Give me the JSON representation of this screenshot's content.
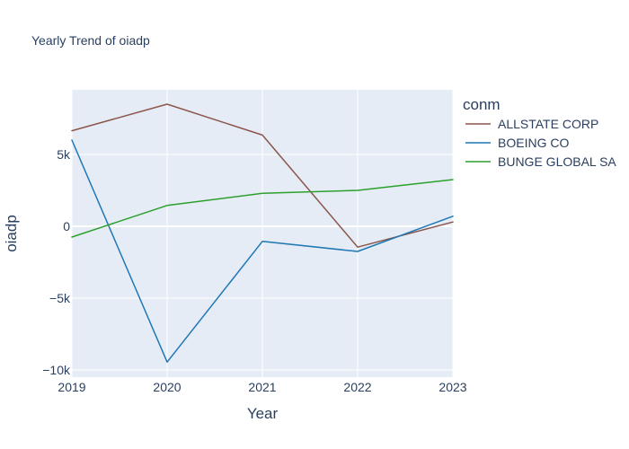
{
  "chart_data": {
    "type": "line",
    "title": "Yearly Trend of oiadp",
    "xlabel": "Year",
    "ylabel": "oiadp",
    "legend_title": "conm",
    "legend_position": "right",
    "grid": true,
    "x": [
      2019,
      2020,
      2021,
      2022,
      2023
    ],
    "x_ticks": [
      "2019",
      "2020",
      "2021",
      "2022",
      "2023"
    ],
    "xlim": [
      2019,
      2023
    ],
    "ylim": [
      -10500,
      9500
    ],
    "y_ticks": [
      {
        "value": -10000,
        "label": "−10k"
      },
      {
        "value": -5000,
        "label": "−5k"
      },
      {
        "value": 0,
        "label": "0"
      },
      {
        "value": 5000,
        "label": "5k"
      }
    ],
    "series": [
      {
        "name": "ALLSTATE CORP",
        "color": "#8c564b",
        "values": [
          6650,
          8500,
          6350,
          -1450,
          300
        ]
      },
      {
        "name": "BOEING CO",
        "color": "#1f77b4",
        "values": [
          6000,
          -9450,
          -1050,
          -1750,
          700
        ]
      },
      {
        "name": "BUNGE GLOBAL SA",
        "color": "#2ca02c",
        "values": [
          -750,
          1450,
          2300,
          2500,
          3250
        ]
      }
    ]
  },
  "colors": {
    "plot_background": "#e5ecf6",
    "grid": "#ffffff",
    "text": "#2a3f5f"
  }
}
